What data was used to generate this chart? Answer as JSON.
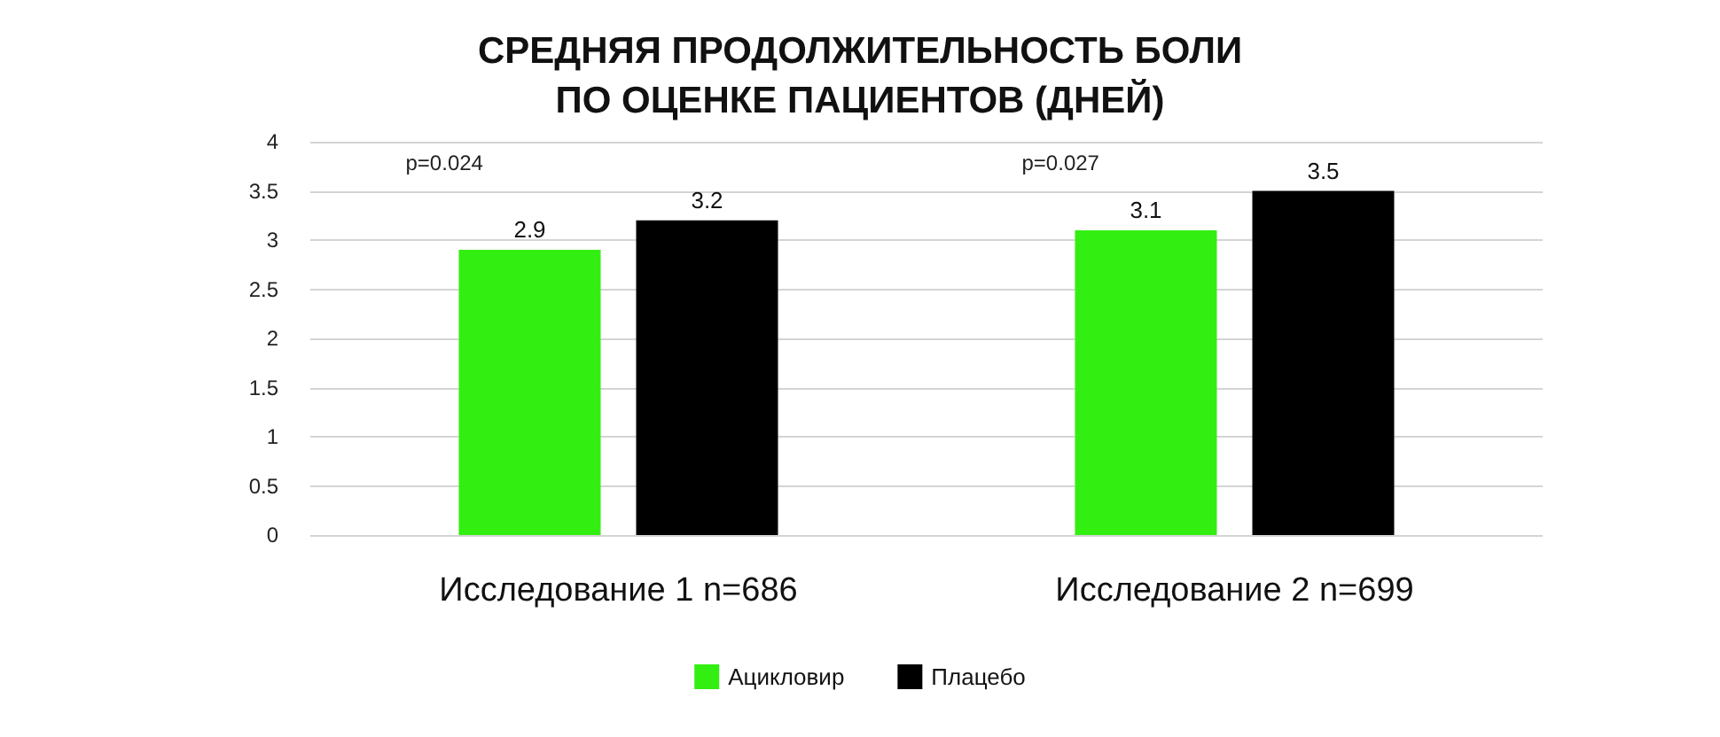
{
  "chart_data": {
    "type": "bar",
    "title": "СРЕДНЯЯ ПРОДОЛЖИТЕЛЬНОСТЬ БОЛИ\nПО ОЦЕНКЕ ПАЦИЕНТОВ (ДНЕЙ)",
    "categories": [
      "Исследование 1 n=686",
      "Исследование 2 n=699"
    ],
    "series": [
      {
        "name": "Ацикловир",
        "color": "#33ee11",
        "values": [
          2.9,
          3.1
        ]
      },
      {
        "name": "Плацебо",
        "color": "#000000",
        "values": [
          3.2,
          3.5
        ]
      }
    ],
    "ylim": [
      0,
      4
    ],
    "yticks": [
      0,
      0.5,
      1,
      1.5,
      2,
      2.5,
      3,
      3.5,
      4
    ],
    "grid": "y",
    "legend": "bottom",
    "data_labels": true,
    "annotations": [
      "p=0.024",
      "p=0.027"
    ]
  }
}
